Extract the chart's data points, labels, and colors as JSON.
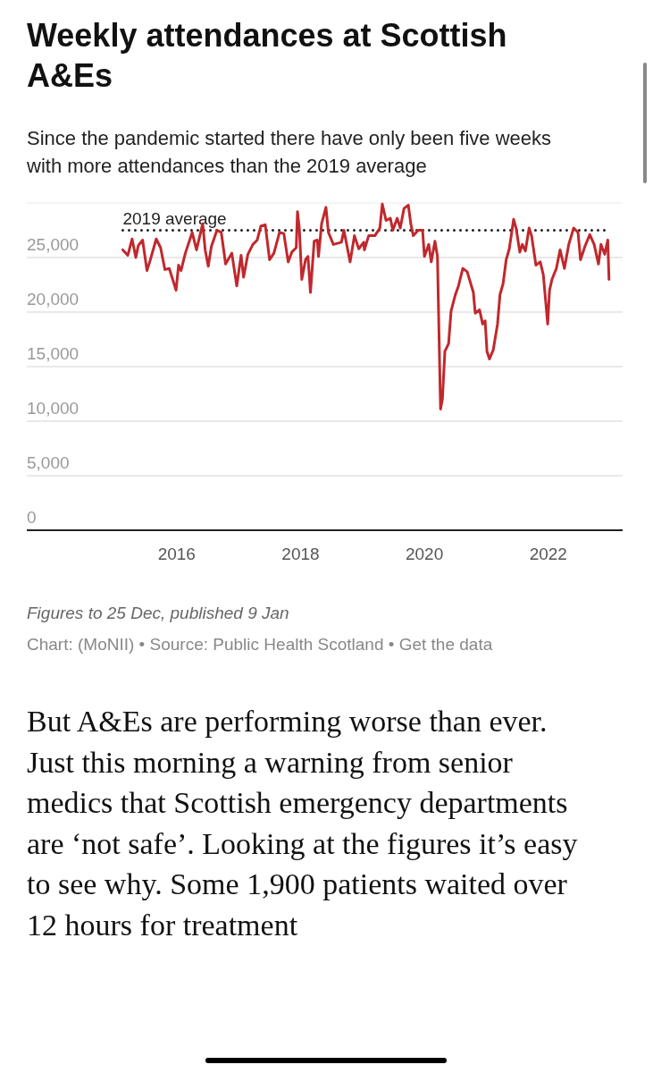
{
  "chart_data": {
    "type": "line",
    "title": "Weekly attendances at Scottish A&Es",
    "subtitle": "Since the pandemic started there have only been five weeks with more attendances than the 2019 average",
    "x": [
      2015.13,
      2015.21,
      2015.28,
      2015.34,
      2015.38,
      2015.45,
      2015.52,
      2015.57,
      2015.67,
      2015.74,
      2015.81,
      2015.88,
      2015.99,
      2016.03,
      2016.07,
      2016.14,
      2016.25,
      2016.32,
      2016.42,
      2016.46,
      2016.51,
      2016.56,
      2016.65,
      2016.72,
      2016.79,
      2016.89,
      2016.97,
      2017.04,
      2017.08,
      2017.15,
      2017.23,
      2017.3,
      2017.36,
      2017.43,
      2017.5,
      2017.57,
      2017.66,
      2017.73,
      2017.8,
      2017.86,
      2017.93,
      2017.95,
      2017.98,
      2018.02,
      2018.08,
      2018.12,
      2018.16,
      2018.22,
      2018.27,
      2018.29,
      2018.34,
      2018.41,
      2018.45,
      2018.53,
      2018.66,
      2018.7,
      2018.8,
      2018.87,
      2018.94,
      2019.02,
      2019.03,
      2019.1,
      2019.2,
      2019.28,
      2019.32,
      2019.38,
      2019.45,
      2019.49,
      2019.56,
      2019.61,
      2019.67,
      2019.74,
      2019.78,
      2019.82,
      2019.9,
      2019.97,
      2020.0,
      2020.07,
      2020.11,
      2020.17,
      2020.21,
      2020.26,
      2020.29,
      2020.33,
      2020.39,
      2020.43,
      2020.5,
      2020.55,
      2020.62,
      2020.69,
      2020.79,
      2020.82,
      2020.89,
      2020.94,
      2020.98,
      2021.01,
      2021.05,
      2021.11,
      2021.18,
      2021.22,
      2021.27,
      2021.32,
      2021.37,
      2021.44,
      2021.48,
      2021.54,
      2021.58,
      2021.63,
      2021.69,
      2021.73,
      2021.8,
      2021.87,
      2021.92,
      2021.99,
      2022.02,
      2022.06,
      2022.13,
      2022.19,
      2022.26,
      2022.33,
      2022.41,
      2022.48,
      2022.52,
      2022.59,
      2022.67,
      2022.74,
      2022.81,
      2022.85,
      2022.91,
      2022.96,
      2022.98
    ],
    "series": [
      {
        "color": "#c0282d",
        "values": [
          25700,
          25200,
          26700,
          25000,
          26100,
          26600,
          23800,
          24700,
          26700,
          25900,
          23900,
          24000,
          22000,
          24300,
          23800,
          25400,
          27300,
          25700,
          28100,
          25700,
          24200,
          26000,
          27500,
          27300,
          24400,
          25400,
          22400,
          25200,
          23200,
          25300,
          26200,
          26600,
          27900,
          28000,
          24800,
          25400,
          27300,
          27200,
          24600,
          25500,
          25900,
          29200,
          27700,
          23000,
          24800,
          25100,
          21800,
          26500,
          26600,
          25100,
          28100,
          29600,
          27300,
          26200,
          26400,
          27500,
          24600,
          27000,
          25800,
          26400,
          25700,
          27000,
          27000,
          27700,
          29900,
          28400,
          28600,
          27500,
          28600,
          27700,
          29500,
          29800,
          28100,
          27000,
          27500,
          27500,
          25100,
          26200,
          24600,
          26500,
          25100,
          11100,
          12000,
          16400,
          17100,
          20100,
          21600,
          22400,
          24000,
          23700,
          21800,
          19900,
          20200,
          18900,
          19200,
          16400,
          15700,
          16500,
          18900,
          21600,
          22600,
          24800,
          25800,
          28500,
          27700,
          25500,
          26200,
          25600,
          27700,
          27000,
          24300,
          24600,
          23400,
          18900,
          22000,
          23000,
          24000,
          25700,
          24000,
          26200,
          27700,
          27300,
          24800,
          26000,
          27100,
          26200,
          24400,
          26200,
          25300,
          26600,
          23000
        ]
      }
    ],
    "xlim": [
      2013.58,
      2023.2
    ],
    "xticks": [
      2016,
      2018,
      2020,
      2022
    ],
    "ylim": [
      0,
      30000
    ],
    "yticks": [
      0,
      {
        "value": 5000,
        "label": "5,000"
      },
      {
        "value": 10000,
        "label": "10,000"
      },
      {
        "value": 15000,
        "label": "15,000"
      },
      {
        "value": 20000,
        "label": "20,000"
      },
      {
        "value": 25000,
        "label": "25,000"
      },
      {
        "value": 30000,
        "label": null
      }
    ],
    "grid": "y",
    "line_style": "solid",
    "marker": "none",
    "ref_lines": [
      {
        "axis": "y",
        "value": 27500,
        "label": "2019 average",
        "color": "#222222",
        "line_style": "dotted"
      }
    ],
    "annotations": [
      "Figures to 25 Dec, published 9 Jan",
      "Chart: (MoNII) • Source: Public Health Scotland • Get the data",
      "But A&Es are performing worse than ever. Just this morning a warning from senior medics that Scottish emergency departments are ‘not safe’. Looking at the figures it’s easy to see why. Some 1,900 patients waited over 12 hours for treatment"
    ]
  }
}
